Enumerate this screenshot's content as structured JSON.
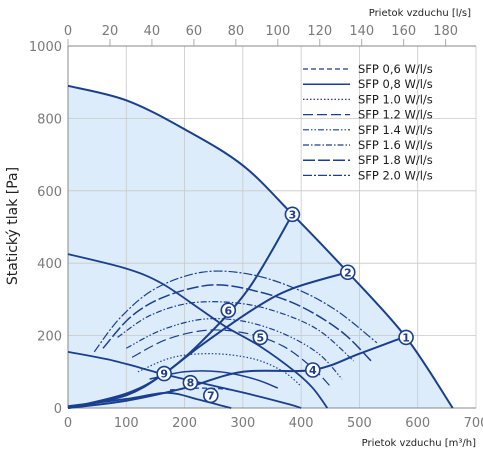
{
  "chart_data": {
    "type": "line",
    "ylabel": "Statický tlak [Pa]",
    "xlabel": "Prietok vzduchu [m³/h]",
    "x2label": "Prietok vzduchu [l/s]",
    "xlim": [
      0,
      700
    ],
    "ylim": [
      0,
      1000
    ],
    "x_ticks": [
      0,
      100,
      200,
      300,
      400,
      500,
      600,
      700
    ],
    "y_ticks": [
      0,
      200,
      400,
      600,
      800,
      1000
    ],
    "x2_ticks": [
      0,
      20,
      40,
      60,
      80,
      100,
      120,
      140,
      160,
      180
    ],
    "grid": true,
    "legend_position": "top-right",
    "colors": {
      "curve": "#1b3f8f",
      "fill": "#dcecfa",
      "grid": "#c8c8c8",
      "ticks": "#7a7a7a"
    },
    "fan_curves": [
      {
        "points": [
          [
            0,
            890
          ],
          [
            100,
            850
          ],
          [
            200,
            770
          ],
          [
            300,
            670
          ],
          [
            385,
            535
          ],
          [
            480,
            375
          ],
          [
            580,
            195
          ],
          [
            660,
            0
          ]
        ]
      },
      {
        "points": [
          [
            0,
            425
          ],
          [
            100,
            385
          ],
          [
            160,
            345
          ],
          [
            225,
            275
          ],
          [
            270,
            225
          ],
          [
            330,
            170
          ],
          [
            390,
            100
          ],
          [
            420,
            55
          ],
          [
            445,
            0
          ]
        ]
      },
      {
        "points": [
          [
            0,
            155
          ],
          [
            80,
            130
          ],
          [
            160,
            95
          ],
          [
            240,
            65
          ],
          [
            320,
            35
          ],
          [
            380,
            10
          ],
          [
            400,
            0
          ]
        ]
      },
      {
        "points": [
          [
            0,
            5
          ],
          [
            100,
            25
          ],
          [
            170,
            42
          ],
          [
            220,
            25
          ],
          [
            260,
            8
          ],
          [
            280,
            0
          ]
        ]
      }
    ],
    "system_curves": [
      {
        "points": [
          [
            0,
            0
          ],
          [
            100,
            20
          ],
          [
            200,
            55
          ],
          [
            300,
            100
          ],
          [
            420,
            105
          ],
          [
            500,
            150
          ],
          [
            575,
            195
          ]
        ]
      },
      {
        "points": [
          [
            0,
            0
          ],
          [
            100,
            35
          ],
          [
            165,
            95
          ],
          [
            230,
            175
          ],
          [
            320,
            275
          ],
          [
            385,
            330
          ],
          [
            480,
            375
          ]
        ]
      },
      {
        "points": [
          [
            0,
            0
          ],
          [
            100,
            40
          ],
          [
            165,
            95
          ],
          [
            230,
            185
          ],
          [
            310,
            330
          ],
          [
            385,
            535
          ]
        ]
      }
    ],
    "sfp_legend": [
      {
        "label": "SFP 0,6  W/l/s",
        "dash": "5,3",
        "width": 1.2
      },
      {
        "label": "SFP 0,8  W/l/s",
        "dash": "",
        "width": 1.5
      },
      {
        "label": "SFP 1.0  W/l/s",
        "dash": "1.5,2",
        "width": 1.2
      },
      {
        "label": "SFP 1.2  W/l/s",
        "dash": "10,4",
        "width": 1.2
      },
      {
        "label": "SFP 1.4  W/l/s",
        "dash": "6,2,1.5,2,1.5,2",
        "width": 1.2
      },
      {
        "label": "SFP 1.6  W/l/s",
        "dash": "6,2,1.5,2",
        "width": 1.2
      },
      {
        "label": "SFP 1.8  W/l/s",
        "dash": "12,3",
        "width": 1.5
      },
      {
        "label": "SFP 2.0  W/l/s",
        "dash": "9,2,2,2",
        "width": 1.2
      }
    ],
    "sfp_curves": [
      {
        "points": [
          [
            175,
            50
          ],
          [
            230,
            55
          ],
          [
            280,
            50
          ],
          [
            320,
            35
          ]
        ]
      },
      {
        "points": [
          [
            140,
            80
          ],
          [
            200,
            100
          ],
          [
            260,
            100
          ],
          [
            320,
            80
          ],
          [
            360,
            55
          ]
        ]
      },
      {
        "points": [
          [
            120,
            100
          ],
          [
            180,
            140
          ],
          [
            250,
            150
          ],
          [
            320,
            135
          ],
          [
            370,
            100
          ],
          [
            400,
            60
          ]
        ]
      },
      {
        "points": [
          [
            110,
            140
          ],
          [
            170,
            190
          ],
          [
            240,
            215
          ],
          [
            310,
            205
          ],
          [
            370,
            170
          ],
          [
            420,
            110
          ],
          [
            450,
            60
          ]
        ]
      },
      {
        "points": [
          [
            100,
            165
          ],
          [
            160,
            215
          ],
          [
            230,
            245
          ],
          [
            300,
            240
          ],
          [
            370,
            205
          ],
          [
            430,
            150
          ],
          [
            470,
            80
          ]
        ]
      },
      {
        "points": [
          [
            85,
            195
          ],
          [
            140,
            255
          ],
          [
            210,
            290
          ],
          [
            290,
            290
          ],
          [
            360,
            265
          ],
          [
            430,
            215
          ],
          [
            490,
            130
          ]
        ]
      },
      {
        "points": [
          [
            60,
            165
          ],
          [
            110,
            255
          ],
          [
            170,
            310
          ],
          [
            250,
            340
          ],
          [
            330,
            320
          ],
          [
            400,
            280
          ],
          [
            470,
            210
          ],
          [
            520,
            130
          ]
        ]
      },
      {
        "points": [
          [
            45,
            155
          ],
          [
            90,
            250
          ],
          [
            150,
            330
          ],
          [
            230,
            375
          ],
          [
            310,
            370
          ],
          [
            390,
            330
          ],
          [
            460,
            270
          ],
          [
            530,
            180
          ]
        ]
      }
    ],
    "operating_points": [
      {
        "label": "1",
        "x": 580,
        "y": 195
      },
      {
        "label": "2",
        "x": 480,
        "y": 375
      },
      {
        "label": "3",
        "x": 385,
        "y": 535
      },
      {
        "label": "4",
        "x": 420,
        "y": 105
      },
      {
        "label": "5",
        "x": 330,
        "y": 195
      },
      {
        "label": "6",
        "x": 275,
        "y": 270
      },
      {
        "label": "7",
        "x": 245,
        "y": 35
      },
      {
        "label": "8",
        "x": 210,
        "y": 70
      },
      {
        "label": "9",
        "x": 165,
        "y": 95
      }
    ]
  }
}
